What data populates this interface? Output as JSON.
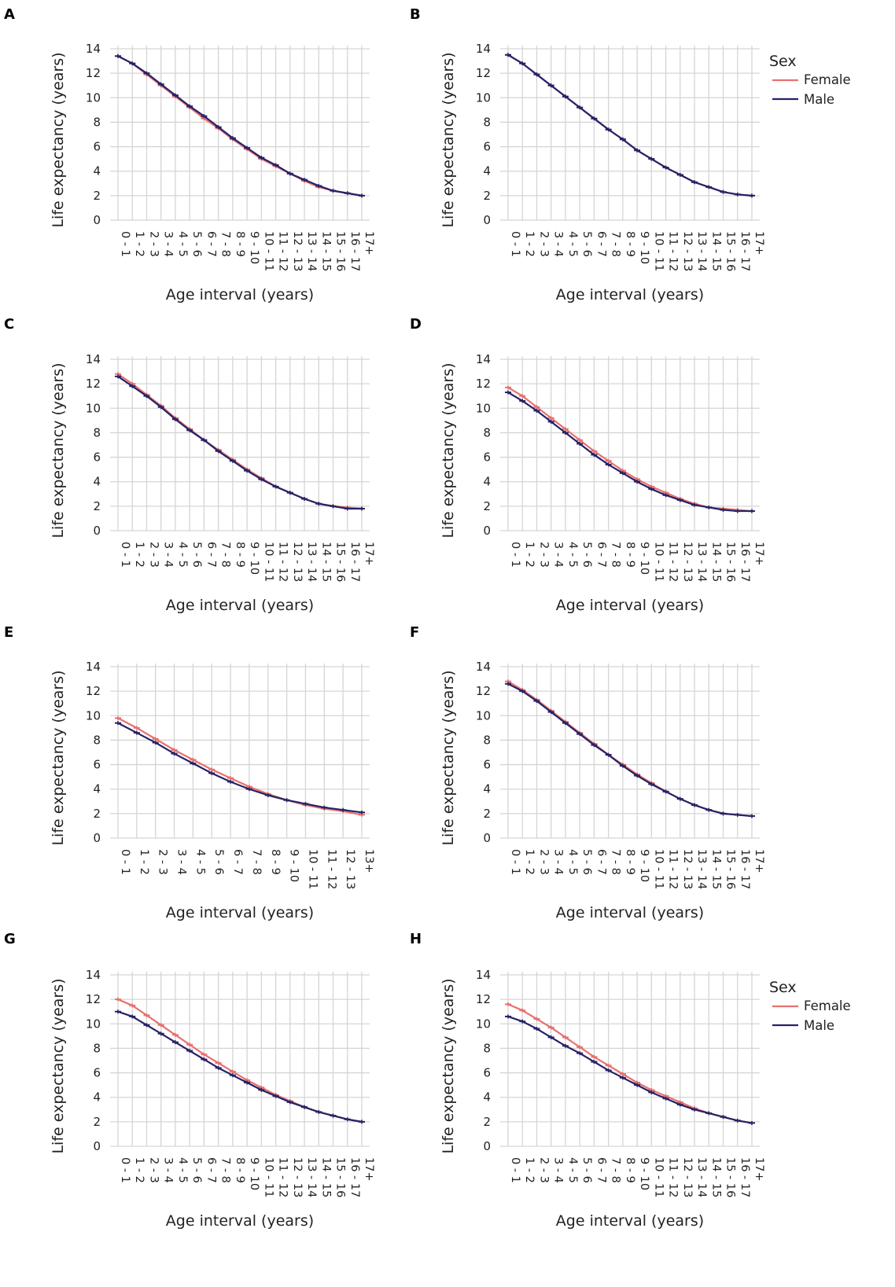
{
  "colors": {
    "female": "#e8716f",
    "male": "#262266",
    "grid": "#d5d5d5"
  },
  "legend": {
    "title": "Sex",
    "female_label": "Female",
    "male_label": "Male"
  },
  "chart_data": [
    {
      "panel": "A",
      "type": "line",
      "xlabel": "Age interval (years)",
      "ylabel": "Life expectancy (years)",
      "ylim": [
        0,
        14
      ],
      "yticks": [
        0,
        2,
        4,
        6,
        8,
        10,
        12,
        14
      ],
      "legend": false,
      "categories": [
        "0 - 1",
        "1 - 2",
        "2 - 3",
        "3 - 4",
        "4 - 5",
        "5 - 6",
        "6 - 7",
        "7 - 8",
        "8 - 9",
        "9 - 10",
        "10 - 11",
        "11 - 12",
        "12 - 13",
        "13 - 14",
        "14 - 15",
        "15 - 16",
        "16 - 17",
        "17+"
      ],
      "series": [
        {
          "name": "Female",
          "values": [
            13.4,
            12.8,
            11.9,
            11.0,
            10.1,
            9.2,
            8.3,
            7.5,
            6.6,
            5.8,
            5.0,
            4.4,
            3.8,
            3.2,
            2.7,
            2.4,
            2.2,
            2.0
          ]
        },
        {
          "name": "Male",
          "values": [
            13.4,
            12.8,
            12.0,
            11.1,
            10.2,
            9.3,
            8.5,
            7.6,
            6.7,
            5.9,
            5.1,
            4.5,
            3.8,
            3.3,
            2.8,
            2.4,
            2.2,
            2.0
          ]
        }
      ]
    },
    {
      "panel": "B",
      "type": "line",
      "xlabel": "Age interval (years)",
      "ylabel": "Life expectancy (years)",
      "ylim": [
        0,
        14
      ],
      "yticks": [
        0,
        2,
        4,
        6,
        8,
        10,
        12,
        14
      ],
      "legend": true,
      "categories": [
        "0 - 1",
        "1 - 2",
        "2 - 3",
        "3 - 4",
        "4 - 5",
        "5 - 6",
        "6 - 7",
        "7 - 8",
        "8 - 9",
        "9 - 10",
        "10 - 11",
        "11 - 12",
        "12 - 13",
        "13 - 14",
        "14 - 15",
        "15 - 16",
        "16 - 17",
        "17+"
      ],
      "series": [
        {
          "name": "Female",
          "values": [
            13.5,
            12.8,
            11.9,
            11.0,
            10.1,
            9.2,
            8.3,
            7.4,
            6.6,
            5.7,
            5.0,
            4.3,
            3.7,
            3.1,
            2.7,
            2.3,
            2.1,
            2.0
          ]
        },
        {
          "name": "Male",
          "values": [
            13.5,
            12.8,
            11.9,
            11.0,
            10.1,
            9.2,
            8.3,
            7.4,
            6.6,
            5.7,
            5.0,
            4.3,
            3.7,
            3.1,
            2.7,
            2.3,
            2.1,
            2.0
          ]
        }
      ]
    },
    {
      "panel": "C",
      "type": "line",
      "xlabel": "Age interval (years)",
      "ylabel": "Life expectancy (years)",
      "ylim": [
        0,
        14
      ],
      "yticks": [
        0,
        2,
        4,
        6,
        8,
        10,
        12,
        14
      ],
      "legend": false,
      "categories": [
        "0 - 1",
        "1 - 2",
        "2 - 3",
        "3 - 4",
        "4 - 5",
        "5 - 6",
        "6 - 7",
        "7 - 8",
        "8 - 9",
        "9 - 10",
        "10 - 11",
        "11 - 12",
        "12 - 13",
        "13 - 14",
        "14 - 15",
        "15 - 16",
        "16 - 17",
        "17+"
      ],
      "series": [
        {
          "name": "Female",
          "values": [
            12.8,
            12.0,
            11.1,
            10.2,
            9.2,
            8.3,
            7.4,
            6.6,
            5.8,
            5.0,
            4.3,
            3.6,
            3.1,
            2.6,
            2.2,
            2.0,
            1.9,
            1.8
          ]
        },
        {
          "name": "Male",
          "values": [
            12.6,
            11.8,
            11.0,
            10.1,
            9.1,
            8.2,
            7.4,
            6.5,
            5.7,
            4.9,
            4.2,
            3.6,
            3.1,
            2.6,
            2.2,
            2.0,
            1.8,
            1.8
          ]
        }
      ]
    },
    {
      "panel": "D",
      "type": "line",
      "xlabel": "Age interval (years)",
      "ylabel": "Life expectancy (years)",
      "ylim": [
        0,
        14
      ],
      "yticks": [
        0,
        2,
        4,
        6,
        8,
        10,
        12,
        14
      ],
      "legend": false,
      "categories": [
        "0 - 1",
        "1 - 2",
        "2 - 3",
        "3 - 4",
        "4 - 5",
        "5 - 6",
        "6 - 7",
        "7 - 8",
        "8 - 9",
        "9 - 10",
        "10 - 11",
        "11 - 12",
        "12 - 13",
        "13 - 14",
        "14 - 15",
        "15 - 16",
        "16 - 17",
        "17+"
      ],
      "series": [
        {
          "name": "Female",
          "values": [
            11.7,
            11.0,
            10.1,
            9.2,
            8.3,
            7.4,
            6.5,
            5.7,
            4.9,
            4.2,
            3.6,
            3.1,
            2.6,
            2.2,
            1.9,
            1.8,
            1.7,
            1.6
          ]
        },
        {
          "name": "Male",
          "values": [
            11.3,
            10.6,
            9.8,
            8.9,
            8.0,
            7.1,
            6.2,
            5.4,
            4.7,
            4.0,
            3.4,
            2.9,
            2.5,
            2.1,
            1.9,
            1.7,
            1.6,
            1.6
          ]
        }
      ]
    },
    {
      "panel": "E",
      "type": "line",
      "xlabel": "Age interval (years)",
      "ylabel": "Life expectancy (years)",
      "ylim": [
        0,
        14
      ],
      "yticks": [
        0,
        2,
        4,
        6,
        8,
        10,
        12,
        14
      ],
      "legend": false,
      "categories": [
        "0 - 1",
        "1 - 2",
        "2 - 3",
        "3 - 4",
        "4 - 5",
        "5 - 6",
        "6 - 7",
        "7 - 8",
        "8 - 9",
        "9 - 10",
        "10 - 11",
        "11 - 12",
        "12 - 13",
        "13+"
      ],
      "series": [
        {
          "name": "Female",
          "values": [
            9.8,
            9.0,
            8.1,
            7.2,
            6.4,
            5.6,
            4.9,
            4.2,
            3.6,
            3.1,
            2.7,
            2.4,
            2.2,
            1.9
          ]
        },
        {
          "name": "Male",
          "values": [
            9.4,
            8.6,
            7.8,
            6.9,
            6.1,
            5.3,
            4.6,
            4.0,
            3.5,
            3.1,
            2.8,
            2.5,
            2.3,
            2.1
          ]
        }
      ]
    },
    {
      "panel": "F",
      "type": "line",
      "xlabel": "Age interval (years)",
      "ylabel": "Life expectancy (years)",
      "ylim": [
        0,
        14
      ],
      "yticks": [
        0,
        2,
        4,
        6,
        8,
        10,
        12,
        14
      ],
      "legend": false,
      "categories": [
        "0 - 1",
        "1 - 2",
        "2 - 3",
        "3 - 4",
        "4 - 5",
        "5 - 6",
        "6 - 7",
        "7 - 8",
        "8 - 9",
        "9 - 10",
        "10 - 11",
        "11 - 12",
        "12 - 13",
        "13 - 14",
        "14 - 15",
        "15 - 16",
        "16 - 17",
        "17+"
      ],
      "series": [
        {
          "name": "Female",
          "values": [
            12.8,
            12.1,
            11.3,
            10.4,
            9.5,
            8.6,
            7.7,
            6.8,
            6.0,
            5.2,
            4.5,
            3.8,
            3.2,
            2.7,
            2.3,
            2.0,
            1.9,
            1.8
          ]
        },
        {
          "name": "Male",
          "values": [
            12.6,
            12.0,
            11.2,
            10.3,
            9.4,
            8.5,
            7.6,
            6.8,
            5.9,
            5.1,
            4.4,
            3.8,
            3.2,
            2.7,
            2.3,
            2.0,
            1.9,
            1.8
          ]
        }
      ]
    },
    {
      "panel": "G",
      "type": "line",
      "xlabel": "Age interval (years)",
      "ylabel": "Life expectancy (years)",
      "ylim": [
        0,
        14
      ],
      "yticks": [
        0,
        2,
        4,
        6,
        8,
        10,
        12,
        14
      ],
      "legend": false,
      "categories": [
        "0 - 1",
        "1 - 2",
        "2 - 3",
        "3 - 4",
        "4 - 5",
        "5 - 6",
        "6 - 7",
        "7 - 8",
        "8 - 9",
        "9 - 10",
        "10 - 11",
        "11 - 12",
        "12 - 13",
        "13 - 14",
        "14 - 15",
        "15 - 16",
        "16 - 17",
        "17+"
      ],
      "series": [
        {
          "name": "Female",
          "values": [
            12.0,
            11.5,
            10.7,
            9.9,
            9.1,
            8.3,
            7.5,
            6.8,
            6.1,
            5.4,
            4.8,
            4.2,
            3.7,
            3.2,
            2.8,
            2.5,
            2.2,
            2.0
          ]
        },
        {
          "name": "Male",
          "values": [
            11.0,
            10.6,
            9.9,
            9.2,
            8.5,
            7.8,
            7.1,
            6.4,
            5.8,
            5.2,
            4.6,
            4.1,
            3.6,
            3.2,
            2.8,
            2.5,
            2.2,
            2.0
          ]
        }
      ]
    },
    {
      "panel": "H",
      "type": "line",
      "xlabel": "Age interval (years)",
      "ylabel": "Life expectancy (years)",
      "ylim": [
        0,
        14
      ],
      "yticks": [
        0,
        2,
        4,
        6,
        8,
        10,
        12,
        14
      ],
      "legend": true,
      "categories": [
        "0 - 1",
        "1 - 2",
        "2 - 3",
        "3 - 4",
        "4 - 5",
        "5 - 6",
        "6 - 7",
        "7 - 8",
        "8 - 9",
        "9 - 10",
        "10 - 11",
        "11 - 12",
        "12 - 13",
        "13 - 14",
        "14 - 15",
        "15 - 16",
        "16 - 17",
        "17+"
      ],
      "series": [
        {
          "name": "Female",
          "values": [
            11.6,
            11.1,
            10.4,
            9.7,
            8.9,
            8.1,
            7.3,
            6.6,
            5.9,
            5.2,
            4.6,
            4.1,
            3.6,
            3.1,
            2.7,
            2.4,
            2.1,
            1.9
          ]
        },
        {
          "name": "Male",
          "values": [
            10.6,
            10.2,
            9.6,
            8.9,
            8.2,
            7.6,
            6.9,
            6.2,
            5.6,
            5.0,
            4.4,
            3.9,
            3.4,
            3.0,
            2.7,
            2.4,
            2.1,
            1.9
          ]
        }
      ]
    }
  ]
}
